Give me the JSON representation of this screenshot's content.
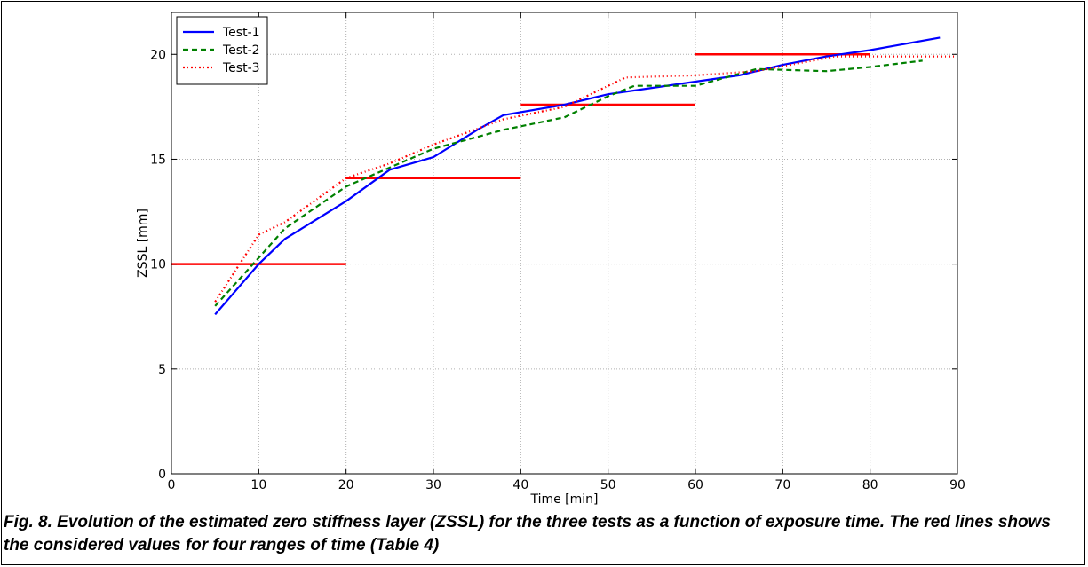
{
  "chart_data": {
    "type": "line",
    "title": "",
    "xlabel": "Time [min]",
    "ylabel": "ZSSL [mm]",
    "xlim": [
      0,
      90
    ],
    "ylim": [
      0,
      22
    ],
    "xticks": [
      0,
      10,
      20,
      30,
      40,
      50,
      60,
      70,
      80,
      90
    ],
    "yticks": [
      0,
      5,
      10,
      15,
      20
    ],
    "grid": true,
    "legend_position": "top-left",
    "series": [
      {
        "name": "Test-1",
        "color": "#0000ff",
        "style": "solid",
        "x": [
          5,
          10,
          13,
          20,
          25,
          30,
          35,
          38,
          45,
          50,
          55,
          60,
          65,
          70,
          75,
          80,
          88
        ],
        "y": [
          7.6,
          10.0,
          11.2,
          13.0,
          14.5,
          15.1,
          16.4,
          17.1,
          17.6,
          18.1,
          18.4,
          18.7,
          19.0,
          19.5,
          19.9,
          20.2,
          20.8
        ]
      },
      {
        "name": "Test-2",
        "color": "#008000",
        "style": "dashed",
        "x": [
          5,
          10,
          13,
          20,
          25,
          30,
          38,
          45,
          50,
          53,
          60,
          67,
          75,
          80,
          86
        ],
        "y": [
          8.0,
          10.3,
          11.7,
          13.7,
          14.6,
          15.5,
          16.4,
          17.0,
          18.0,
          18.5,
          18.5,
          19.3,
          19.2,
          19.4,
          19.7
        ]
      },
      {
        "name": "Test-3",
        "color": "#ff0000",
        "style": "dashdot",
        "x": [
          5,
          10,
          13,
          20,
          25,
          30,
          38,
          45,
          52,
          60,
          67,
          76,
          82,
          90
        ],
        "y": [
          8.2,
          11.4,
          12.0,
          14.1,
          14.8,
          15.7,
          16.9,
          17.5,
          18.9,
          19.0,
          19.2,
          19.9,
          19.9,
          19.9
        ]
      }
    ],
    "ranges": [
      {
        "x": [
          0,
          20
        ],
        "y": 10.0
      },
      {
        "x": [
          20,
          40
        ],
        "y": 14.1
      },
      {
        "x": [
          40,
          60
        ],
        "y": 17.6
      },
      {
        "x": [
          60,
          80
        ],
        "y": 20.0
      }
    ],
    "range_color": "#ff0000"
  },
  "caption": "Fig. 8. Evolution of the estimated zero stiffness layer (ZSSL) for the three tests as a function of exposure time. The red lines shows the considered values for four ranges of time (Table 4)"
}
